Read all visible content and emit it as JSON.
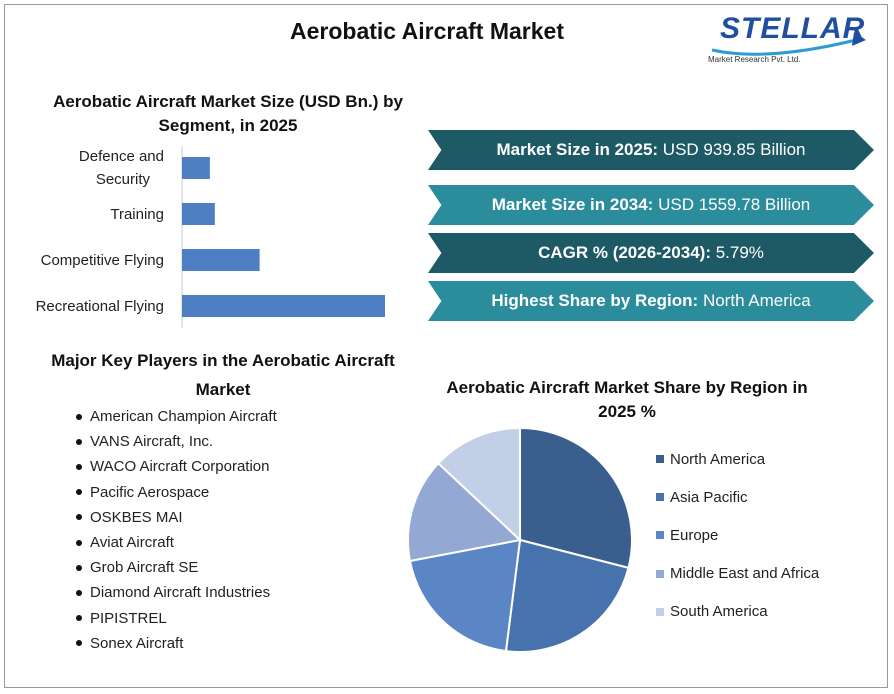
{
  "title": "Aerobatic Aircraft Market",
  "logo": {
    "brand": "STELLAR",
    "tagline": "Market Research Pvt. Ltd."
  },
  "colors": {
    "kpi_dark": "#1e5a66",
    "kpi_light": "#2b8c9b",
    "bar": "#4f7fc3"
  },
  "kpis": [
    {
      "key": "Market Size in 2025:",
      "value": "USD 939.85 Billion"
    },
    {
      "key": "Market Size in 2034:",
      "value": "USD 1559.78 Billion"
    },
    {
      "key": "CAGR % (2026-2034):",
      "value": "5.79%"
    },
    {
      "key": "Highest Share by Region:",
      "value": "North America"
    }
  ],
  "players": {
    "title": "Major Key Players in the Aerobatic Aircraft Market",
    "items": [
      "American Champion Aircraft",
      "VANS Aircraft, Inc.",
      "WACO Aircraft Corporation",
      "Pacific Aerospace",
      "OSKBES MAI",
      "Aviat Aircraft",
      "Grob Aircraft SE",
      "Diamond Aircraft Industries",
      "PIPISTREL",
      "Sonex Aircraft"
    ]
  },
  "chart_data": [
    {
      "type": "bar",
      "orientation": "horizontal",
      "title": "Aerobatic Aircraft Market Size (USD Bn.) by Segment, in 2025",
      "categories": [
        "Defence and Security",
        "Training",
        "Competitive Flying",
        "Recreational Flying"
      ],
      "values": [
        28,
        33,
        78,
        204
      ],
      "value_axis_shown": false,
      "color": "#4f7fc3"
    },
    {
      "type": "pie",
      "title": "Aerobatic Aircraft Market Share by Region in 2025 %",
      "labels": [
        "North America",
        "Asia Pacific",
        "Europe",
        "Middle East and Africa",
        "South America"
      ],
      "values": [
        29,
        23,
        20,
        15,
        13
      ],
      "colors": [
        "#3a5f8f",
        "#4673ae",
        "#5b86c6",
        "#93a9d3",
        "#c3cfe6"
      ],
      "legend": "right"
    }
  ]
}
